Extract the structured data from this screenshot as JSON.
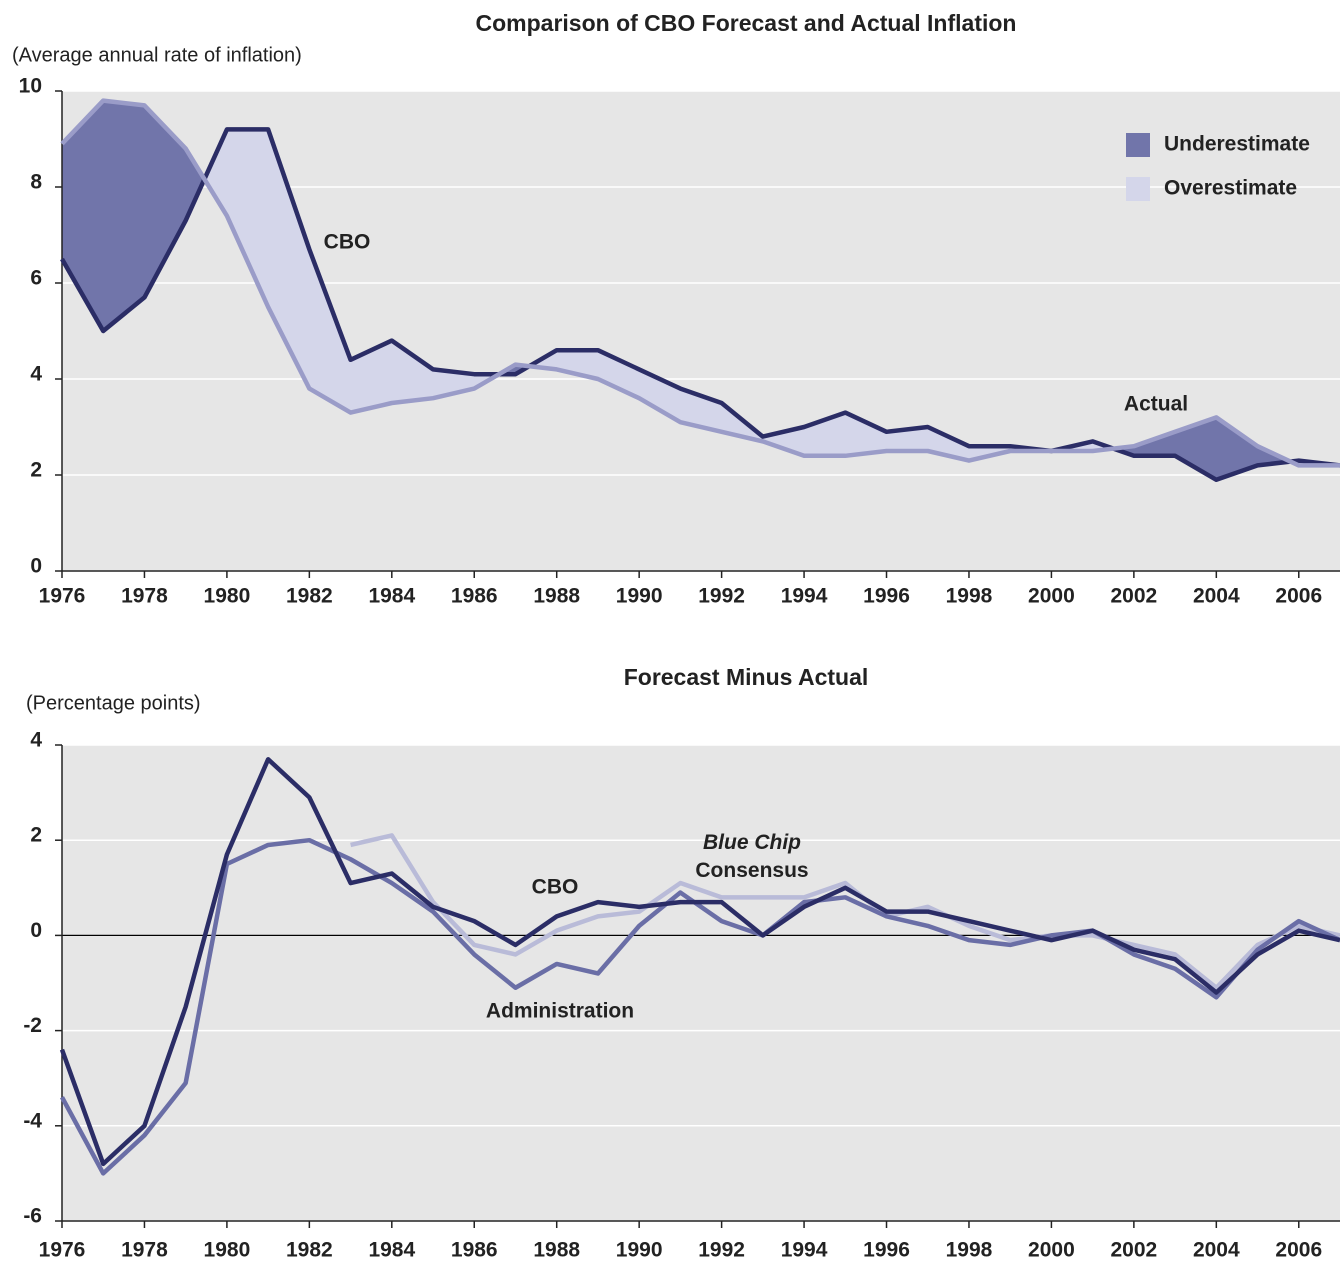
{
  "chart_data": [
    {
      "type": "line",
      "title": "Comparison of CBO Forecast and Actual Inflation",
      "y_label": "(Average annual rate of inflation)",
      "x": [
        1976,
        1977,
        1978,
        1979,
        1980,
        1981,
        1982,
        1983,
        1984,
        1985,
        1986,
        1987,
        1988,
        1989,
        1990,
        1991,
        1992,
        1993,
        1994,
        1995,
        1996,
        1997,
        1998,
        1999,
        2000,
        2001,
        2002,
        2003,
        2004,
        2005,
        2006,
        2007
      ],
      "series": [
        {
          "name": "CBO",
          "color": "#2b2d66",
          "values": [
            6.5,
            5.0,
            5.7,
            7.3,
            9.2,
            9.2,
            6.7,
            4.4,
            4.8,
            4.2,
            4.1,
            4.1,
            4.6,
            4.6,
            4.2,
            3.8,
            3.5,
            2.8,
            3.0,
            3.3,
            2.9,
            3.0,
            2.6,
            2.6,
            2.5,
            2.7,
            2.4,
            2.4,
            1.9,
            2.2,
            2.3,
            2.2
          ]
        },
        {
          "name": "Actual",
          "color": "#9a9cc8",
          "values": [
            8.9,
            9.8,
            9.7,
            8.8,
            7.4,
            5.5,
            3.8,
            3.3,
            3.5,
            3.6,
            3.8,
            4.3,
            4.2,
            4.0,
            3.6,
            3.1,
            2.9,
            2.7,
            2.4,
            2.4,
            2.5,
            2.5,
            2.3,
            2.5,
            2.5,
            2.5,
            2.6,
            2.9,
            3.2,
            2.6,
            2.2,
            2.2
          ]
        }
      ],
      "areas": [
        {
          "name": "Underestimate",
          "color": "#7175aa"
        },
        {
          "name": "Overestimate",
          "color": "#d4d6ea"
        }
      ],
      "xlim": [
        1976,
        2007
      ],
      "xticks": [
        1976,
        1978,
        1980,
        1982,
        1984,
        1986,
        1988,
        1990,
        1992,
        1994,
        1996,
        1998,
        2000,
        2002,
        2004,
        2006
      ],
      "ylim": [
        0,
        10
      ],
      "yticks": [
        0,
        2,
        4,
        6,
        8,
        10
      ],
      "grid": true
    },
    {
      "type": "line",
      "title": "Forecast Minus Actual",
      "y_label": "(Percentage points)",
      "x": [
        1976,
        1977,
        1978,
        1979,
        1980,
        1981,
        1982,
        1983,
        1984,
        1985,
        1986,
        1987,
        1988,
        1989,
        1990,
        1991,
        1992,
        1993,
        1994,
        1995,
        1996,
        1997,
        1998,
        1999,
        2000,
        2001,
        2002,
        2003,
        2004,
        2005,
        2006,
        2007
      ],
      "series": [
        {
          "name": "Blue Chip Consensus",
          "color": "#b9bbd8",
          "values": [
            null,
            null,
            null,
            null,
            null,
            null,
            null,
            1.9,
            2.1,
            0.7,
            -0.2,
            -0.4,
            0.1,
            0.4,
            0.5,
            1.1,
            0.8,
            0.8,
            0.8,
            1.1,
            0.4,
            0.6,
            0.2,
            -0.1,
            0.0,
            0.0,
            -0.2,
            -0.4,
            -1.1,
            -0.2,
            0.2,
            0.0
          ]
        },
        {
          "name": "Administration",
          "color": "#6a6ea6",
          "values": [
            -3.4,
            -5.0,
            -4.2,
            -3.1,
            1.5,
            1.9,
            2.0,
            1.6,
            1.1,
            0.5,
            -0.4,
            -1.1,
            -0.6,
            -0.8,
            0.2,
            0.9,
            0.3,
            0.0,
            0.7,
            0.8,
            0.4,
            0.2,
            -0.1,
            -0.2,
            0.0,
            0.1,
            -0.4,
            -0.7,
            -1.3,
            -0.3,
            0.3,
            -0.1
          ]
        },
        {
          "name": "CBO",
          "color": "#2b2d66",
          "values": [
            -2.4,
            -4.8,
            -4.0,
            -1.5,
            1.7,
            3.7,
            2.9,
            1.1,
            1.3,
            0.6,
            0.3,
            -0.2,
            0.4,
            0.7,
            0.6,
            0.7,
            0.7,
            0.0,
            0.6,
            1.0,
            0.5,
            0.5,
            0.3,
            0.1,
            -0.1,
            0.1,
            -0.3,
            -0.5,
            -1.2,
            -0.4,
            0.1,
            -0.1
          ]
        }
      ],
      "xlim": [
        1976,
        2007
      ],
      "xticks": [
        1976,
        1978,
        1980,
        1982,
        1984,
        1986,
        1988,
        1990,
        1992,
        1994,
        1996,
        1998,
        2000,
        2002,
        2004,
        2006
      ],
      "ylim": [
        -6,
        4
      ],
      "yticks": [
        -6,
        -4,
        -2,
        0,
        2,
        4
      ],
      "grid": true
    }
  ]
}
